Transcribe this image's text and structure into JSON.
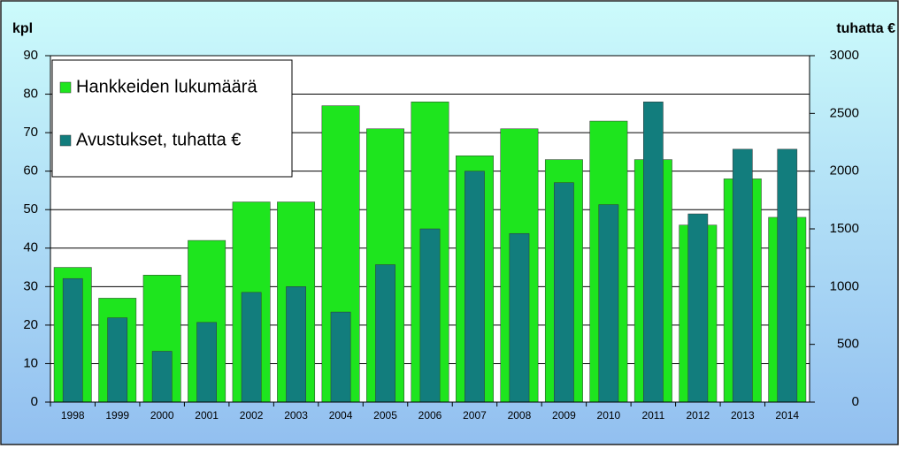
{
  "chart_data": {
    "type": "bar",
    "y_label": "kpl",
    "y2_label": "tuhatta €",
    "categories": [
      "1998",
      "1999",
      "2000",
      "2001",
      "2002",
      "2003",
      "2004",
      "2005",
      "2006",
      "2007",
      "2008",
      "2009",
      "2010",
      "2011",
      "2012",
      "2013",
      "2014"
    ],
    "series": [
      {
        "name": "Hankkeiden lukumäärä",
        "color": "#1ee51e",
        "values": [
          35,
          27,
          33,
          42,
          52,
          52,
          77,
          71,
          78,
          64,
          71,
          63,
          73,
          63,
          46,
          58,
          48
        ]
      },
      {
        "name": "Avustukset, tuhatta €",
        "color": "#127d7d",
        "axis": "y2",
        "values": [
          1070,
          730,
          440,
          690,
          950,
          1000,
          780,
          1190,
          1500,
          2000,
          1460,
          1900,
          1710,
          2600,
          1630,
          2190,
          2190
        ]
      }
    ],
    "ylim": [
      0,
      90
    ],
    "yticks": [
      0,
      10,
      20,
      30,
      40,
      50,
      60,
      70,
      80,
      90
    ],
    "y2lim": [
      0,
      3000
    ],
    "y2ticks": [
      0,
      500,
      1000,
      1500,
      2000,
      2500,
      3000
    ],
    "grid": true,
    "legend": "top-left"
  }
}
